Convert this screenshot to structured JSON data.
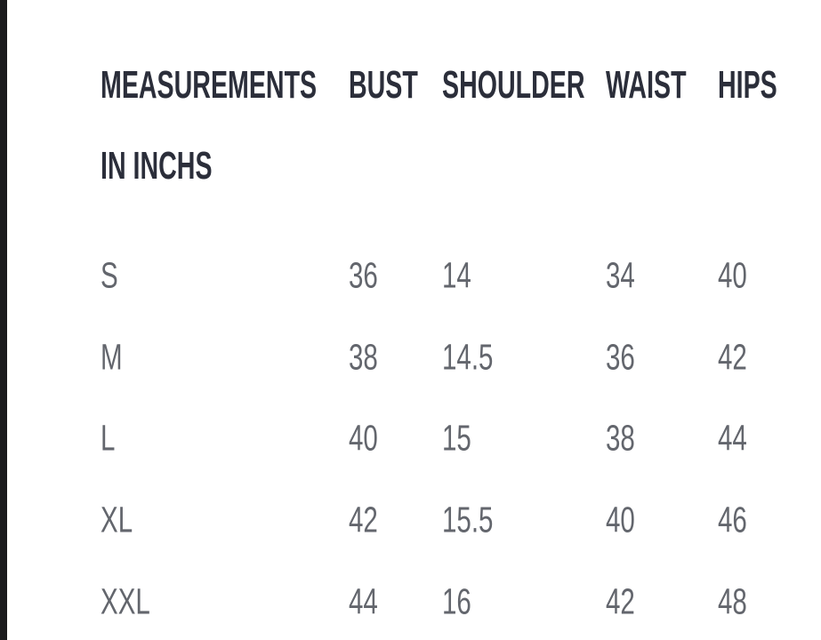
{
  "page": {
    "background_color": "#ffffff",
    "edge_stripe_color": "#1a1a1c",
    "header_text_color": "#2b2e3a",
    "data_text_color": "#63666d"
  },
  "table": {
    "header": {
      "title_line1": "MEASUREMENTS",
      "title_line2": "IN INCHS",
      "col_bust": "BUST",
      "col_shoulder": "SHOULDER",
      "col_waist": "WAIST",
      "col_hips": "HIPS"
    },
    "rows": [
      {
        "size": "S",
        "bust": "36",
        "shoulder": "14",
        "waist": "34",
        "hips": "40"
      },
      {
        "size": "M",
        "bust": "38",
        "shoulder": "14.5",
        "waist": "36",
        "hips": "42"
      },
      {
        "size": "L",
        "bust": "40",
        "shoulder": "15",
        "waist": "38",
        "hips": "44"
      },
      {
        "size": "XL",
        "bust": "42",
        "shoulder": "15.5",
        "waist": "40",
        "hips": "46"
      },
      {
        "size": "XXL",
        "bust": "44",
        "shoulder": "16",
        "waist": "42",
        "hips": "48"
      }
    ]
  },
  "chart_data": {
    "type": "table",
    "title": "MEASUREMENTS IN INCHS",
    "columns": [
      "MEASUREMENTS IN INCHS",
      "BUST",
      "SHOULDER",
      "WAIST",
      "HIPS"
    ],
    "rows": [
      [
        "S",
        36,
        14,
        34,
        40
      ],
      [
        "M",
        38,
        14.5,
        36,
        42
      ],
      [
        "L",
        40,
        15,
        38,
        44
      ],
      [
        "XL",
        42,
        15.5,
        40,
        46
      ],
      [
        "XXL",
        44,
        16,
        42,
        48
      ]
    ],
    "units": "inches",
    "layout": {
      "grid": false,
      "header_style": "bold condensed",
      "body_style": "light condensed"
    }
  }
}
